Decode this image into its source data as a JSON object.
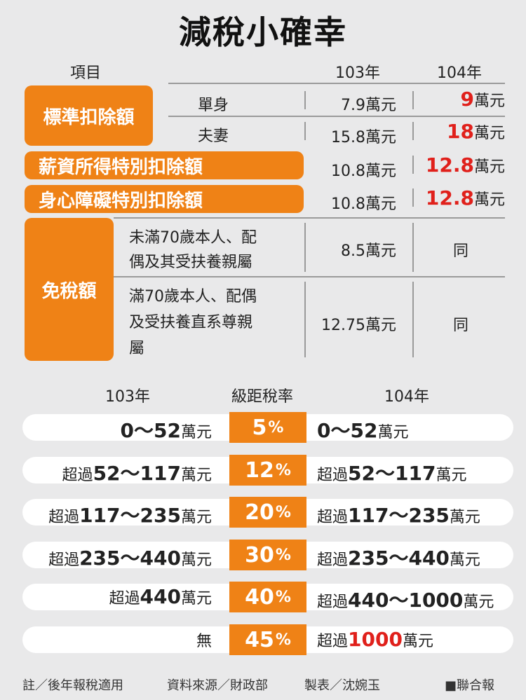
{
  "title": "減稅小確幸",
  "header": {
    "item": "項目",
    "y103": "103年",
    "y104": "104年"
  },
  "standard": {
    "label": "標準扣除額",
    "rows": [
      {
        "label": "單身",
        "v103": "7.9萬元",
        "v104_num": "9",
        "v104_unit": "萬元"
      },
      {
        "label": "夫妻",
        "v103": "15.8萬元",
        "v104_num": "18",
        "v104_unit": "萬元"
      }
    ]
  },
  "salary": {
    "label": "薪資所得特別扣除額",
    "v103": "10.8萬元",
    "v104_num": "12.8",
    "v104_unit": "萬元"
  },
  "disability": {
    "label": "身心障礙特別扣除額",
    "v103": "10.8萬元",
    "v104_num": "12.8",
    "v104_unit": "萬元"
  },
  "exemption": {
    "label": "免稅額",
    "rows": [
      {
        "line1": "未滿70歲本人、配",
        "line2": "偶及其受扶養親屬",
        "line3": "",
        "v103": "8.5萬元",
        "v104": "同"
      },
      {
        "line1": "滿70歲本人、配偶",
        "line2": "及受扶養直系尊親",
        "line3": "屬",
        "v103": "12.75萬元",
        "v104": "同"
      }
    ]
  },
  "brackets_header": {
    "y103": "103年",
    "rate": "級距稅率",
    "y104": "104年"
  },
  "brackets": [
    {
      "l_pre": "",
      "l_num": "0～52",
      "l_unit": "萬元",
      "rate": "5",
      "r_pre": "",
      "r_num": "0～52",
      "r_unit": "萬元",
      "r_red": false
    },
    {
      "l_pre": "超過",
      "l_num": "52～117",
      "l_unit": "萬元",
      "rate": "12",
      "r_pre": "超過",
      "r_num": "52～117",
      "r_unit": "萬元",
      "r_red": false
    },
    {
      "l_pre": "超過",
      "l_num": "117～235",
      "l_unit": "萬元",
      "rate": "20",
      "r_pre": "超過",
      "r_num": "117～235",
      "r_unit": "萬元",
      "r_red": false
    },
    {
      "l_pre": "超過",
      "l_num": "235～440",
      "l_unit": "萬元",
      "rate": "30",
      "r_pre": "超過",
      "r_num": "235～440",
      "r_unit": "萬元",
      "r_red": false
    },
    {
      "l_pre": "超過",
      "l_num": "440",
      "l_unit": "萬元",
      "rate": "40",
      "r_pre": "超過",
      "r_num": "440～1000",
      "r_unit": "萬元",
      "r_red": false
    },
    {
      "l_pre": "無",
      "l_num": "",
      "l_unit": "",
      "rate": "45",
      "r_pre": "超過",
      "r_num": "1000",
      "r_unit": "萬元",
      "r_red": true
    }
  ],
  "percent": "%",
  "footer": {
    "note": "註／後年報稅適用",
    "source": "資料來源／財政部",
    "maker": "製表／沈婉玉",
    "brand": "■聯合報"
  }
}
